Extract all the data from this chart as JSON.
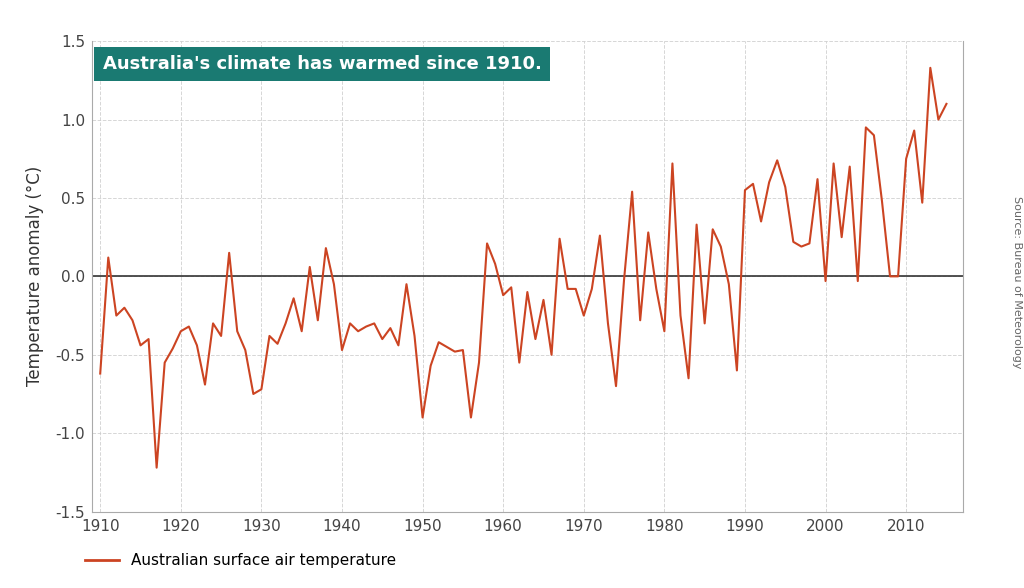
{
  "title": "Australia's climate has warmed since 1910.",
  "title_bg_color": "#1a7a72",
  "title_text_color": "#ffffff",
  "ylabel": "Temperature anomaly (°C)",
  "source_text": "Source: Bureau of Meteorology",
  "line_color": "#cc4422",
  "legend_label": "Australian surface air temperature",
  "ylim": [
    -1.5,
    1.5
  ],
  "xlim": [
    1909,
    2017
  ],
  "yticks": [
    -1.5,
    -1.0,
    -0.5,
    0.0,
    0.5,
    1.0,
    1.5
  ],
  "xticks": [
    1910,
    1920,
    1930,
    1940,
    1950,
    1960,
    1970,
    1980,
    1990,
    2000,
    2010
  ],
  "years": [
    1910,
    1911,
    1912,
    1913,
    1914,
    1915,
    1916,
    1917,
    1918,
    1919,
    1920,
    1921,
    1922,
    1923,
    1924,
    1925,
    1926,
    1927,
    1928,
    1929,
    1930,
    1931,
    1932,
    1933,
    1934,
    1935,
    1936,
    1937,
    1938,
    1939,
    1940,
    1941,
    1942,
    1943,
    1944,
    1945,
    1946,
    1947,
    1948,
    1949,
    1950,
    1951,
    1952,
    1953,
    1954,
    1955,
    1956,
    1957,
    1958,
    1959,
    1960,
    1961,
    1962,
    1963,
    1964,
    1965,
    1966,
    1967,
    1968,
    1969,
    1970,
    1971,
    1972,
    1973,
    1974,
    1975,
    1976,
    1977,
    1978,
    1979,
    1980,
    1981,
    1982,
    1983,
    1984,
    1985,
    1986,
    1987,
    1988,
    1989,
    1990,
    1991,
    1992,
    1993,
    1994,
    1995,
    1996,
    1997,
    1998,
    1999,
    2000,
    2001,
    2002,
    2003,
    2004,
    2005,
    2006,
    2007,
    2008,
    2009,
    2010,
    2011,
    2012,
    2013,
    2014,
    2015
  ],
  "anomalies": [
    -0.62,
    0.12,
    -0.25,
    -0.2,
    -0.28,
    -0.44,
    -0.4,
    -1.22,
    -0.55,
    -0.46,
    -0.35,
    -0.32,
    -0.44,
    -0.69,
    -0.3,
    -0.38,
    0.15,
    -0.35,
    -0.47,
    -0.75,
    -0.72,
    -0.38,
    -0.43,
    -0.3,
    -0.14,
    -0.35,
    0.06,
    -0.28,
    0.18,
    -0.05,
    -0.47,
    -0.3,
    -0.35,
    -0.32,
    -0.3,
    -0.4,
    -0.33,
    -0.44,
    -0.05,
    -0.38,
    -0.9,
    -0.57,
    -0.42,
    -0.45,
    -0.48,
    -0.47,
    -0.9,
    -0.55,
    0.21,
    0.08,
    -0.12,
    -0.07,
    -0.55,
    -0.1,
    -0.4,
    -0.15,
    -0.5,
    0.24,
    -0.08,
    -0.08,
    -0.25,
    -0.08,
    0.26,
    -0.3,
    -0.7,
    -0.02,
    0.54,
    -0.28,
    0.28,
    -0.08,
    -0.35,
    0.72,
    -0.25,
    -0.65,
    0.33,
    -0.3,
    0.3,
    0.19,
    -0.05,
    -0.6,
    0.55,
    0.59,
    0.35,
    0.6,
    0.74,
    0.57,
    0.22,
    0.19,
    0.21,
    0.62,
    -0.03,
    0.72,
    0.25,
    0.7,
    -0.03,
    0.95,
    0.9,
    0.48,
    0.0,
    0.0,
    0.75,
    0.93,
    0.47,
    1.33,
    1.0,
    1.1
  ],
  "background_color": "#ffffff",
  "plot_bg_color": "#ffffff",
  "grid_color": "#cccccc",
  "zero_line_color": "#333333",
  "spine_color": "#aaaaaa",
  "tick_label_color": "#444444",
  "ylabel_color": "#333333"
}
